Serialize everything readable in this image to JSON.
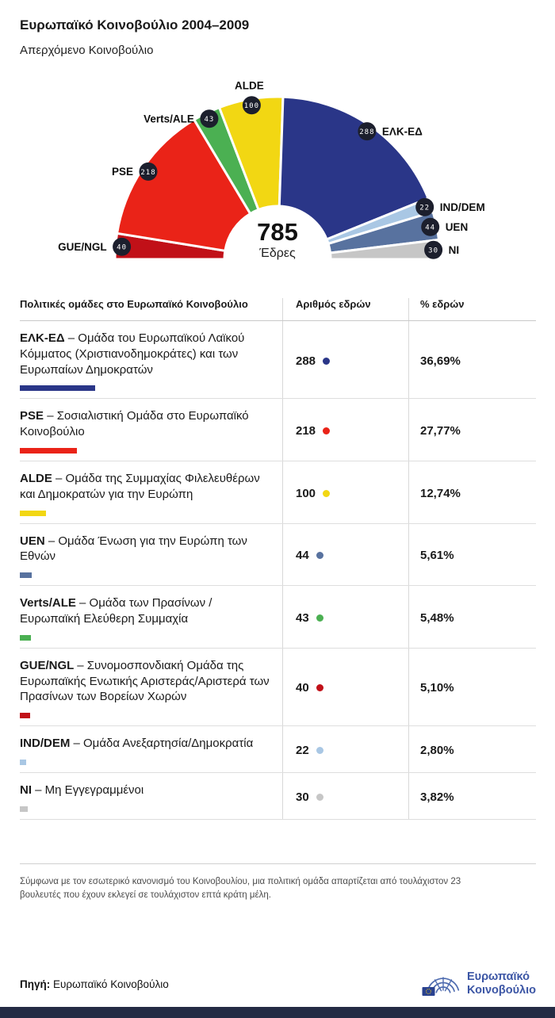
{
  "page": {
    "title": "Ευρωπαϊκό Κοινοβούλιο 2004–2009",
    "subtitle": "Απερχόμενο Κοινοβούλιο"
  },
  "chart_data": {
    "type": "pie",
    "variant": "hemicycle-half-donut",
    "title": "Ευρωπαϊκό Κοινοβούλιο 2004–2009",
    "subtitle": "Απερχόμενο Κοινοβούλιο",
    "total_seats": 785,
    "total_label": "785",
    "total_caption": "Έδρες",
    "badge_bg": "#1c1f2d",
    "badge_text_color": "#ffffff",
    "order": "left-to-right",
    "series": [
      {
        "name": "GUE/NGL",
        "seats": 40,
        "color": "#c11018"
      },
      {
        "name": "PSE",
        "seats": 218,
        "color": "#ea2318"
      },
      {
        "name": "Verts/ALE",
        "seats": 43,
        "color": "#4bb052"
      },
      {
        "name": "ALDE",
        "seats": 100,
        "color": "#f2d713"
      },
      {
        "name": "ΕΛΚ-ΕΔ",
        "seats": 288,
        "color": "#2a3688"
      },
      {
        "name": "IND/DEM",
        "seats": 22,
        "color": "#a9c7e4"
      },
      {
        "name": "UEN",
        "seats": 44,
        "color": "#58729f"
      },
      {
        "name": "NI",
        "seats": 30,
        "color": "#c6c6c6"
      }
    ]
  },
  "table": {
    "headers": [
      "Πολιτικές ομάδες στο Ευρωπαϊκό Κοινοβούλιο",
      "Αριθμός εδρών",
      "% εδρών"
    ],
    "rows": [
      {
        "abbr": "ΕΛΚ-ΕΔ",
        "desc": "– Ομάδα του Ευρωπαϊκού Λαϊκού Κόμματος (Χριστιανοδημοκράτες) και των Ευρωπαίων Δημοκρατών",
        "seats": 288,
        "pct": "36,69%",
        "color": "#2a3688"
      },
      {
        "abbr": "PSE",
        "desc": "– Σοσιαλιστική Ομάδα στο Ευρωπαϊκό Κοινοβούλιο",
        "seats": 218,
        "pct": "27,77%",
        "color": "#ea2318"
      },
      {
        "abbr": "ALDE",
        "desc": "– Ομάδα της Συμμαχίας Φιλελευθέρων και Δημοκρατών για την Ευρώπη",
        "seats": 100,
        "pct": "12,74%",
        "color": "#f2d713"
      },
      {
        "abbr": "UEN",
        "desc": "– Ομάδα Ένωση για την Ευρώπη των Εθνών",
        "seats": 44,
        "pct": "5,61%",
        "color": "#58729f"
      },
      {
        "abbr": "Verts/ALE",
        "desc": "– Ομάδα των Πρασίνων / Ευρωπαϊκή Ελεύθερη Συμμαχία",
        "seats": 43,
        "pct": "5,48%",
        "color": "#4bb052"
      },
      {
        "abbr": "GUE/NGL",
        "desc": "– Συνομοσπονδιακή Ομάδα της Ευρωπαϊκής Ενωτικής Αριστεράς/Αριστερά των Πρασίνων των Βορείων Χωρών",
        "seats": 40,
        "pct": "5,10%",
        "color": "#c11018"
      },
      {
        "abbr": "IND/DEM",
        "desc": "– Ομάδα Ανεξαρτησία/Δημοκρατία",
        "seats": 22,
        "pct": "2,80%",
        "color": "#a9c7e4"
      },
      {
        "abbr": "NI",
        "desc": "– Μη Εγγεγραμμένοι",
        "seats": 30,
        "pct": "3,82%",
        "color": "#c6c6c6"
      }
    ]
  },
  "footer": {
    "note": "Σύμφωνα με τον εσωτερικό κανονισμό του Κοινοβουλίου, μια πολιτική ομάδα απαρτίζεται από τουλάχιστον 23 βουλευτές που έχουν εκλεγεί σε τουλάχιστον επτά κράτη μέλη.",
    "source_label": "Πηγή:",
    "source_value": " Ευρωπαϊκό Κοινοβούλιο",
    "logo_line1": "Ευρωπαϊκό",
    "logo_line2": "Κοινοβούλιο",
    "logo_blue": "#4f6cb0",
    "flag_blue": "#29418f",
    "star_yellow": "#f8d117"
  }
}
